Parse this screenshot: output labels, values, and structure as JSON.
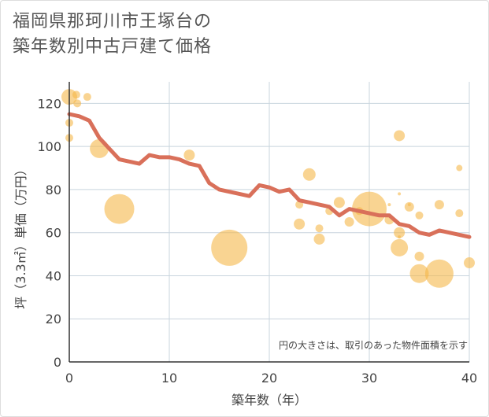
{
  "title_lines": [
    "福岡県那珂川市王塚台の",
    "築年数別中古戸建て価格"
  ],
  "colors": {
    "bubble": "#f5b84a",
    "line": "#d9705a",
    "grid": "#c8d4de",
    "axis": "#333333"
  },
  "chart_data": {
    "type": "scatter",
    "title": "福岡県那珂川市王塚台の築年数別中古戸建て価格",
    "xlabel": "築年数（年）",
    "ylabel": "坪（3.3㎡）単価（万円）",
    "xlim": [
      0,
      40
    ],
    "ylim": [
      0,
      130
    ],
    "xticks": [
      0,
      10,
      20,
      30,
      40
    ],
    "yticks": [
      0,
      20,
      40,
      60,
      80,
      100,
      120
    ],
    "grid": true,
    "note": "円の大きさは、取引のあった物件面積を示す",
    "series": [
      {
        "kind": "bubble",
        "points": [
          {
            "x": 0,
            "y": 123,
            "size": 10
          },
          {
            "x": 0.7,
            "y": 124,
            "size": 5
          },
          {
            "x": 0.8,
            "y": 120,
            "size": 5
          },
          {
            "x": 1.8,
            "y": 123,
            "size": 5
          },
          {
            "x": 0,
            "y": 111,
            "size": 5
          },
          {
            "x": 0,
            "y": 104,
            "size": 5
          },
          {
            "x": 3,
            "y": 99,
            "size": 12
          },
          {
            "x": 5,
            "y": 71,
            "size": 19
          },
          {
            "x": 12,
            "y": 96,
            "size": 7
          },
          {
            "x": 16,
            "y": 53,
            "size": 23
          },
          {
            "x": 23,
            "y": 73,
            "size": 5
          },
          {
            "x": 23,
            "y": 64,
            "size": 7
          },
          {
            "x": 24,
            "y": 87,
            "size": 8
          },
          {
            "x": 25,
            "y": 62,
            "size": 5
          },
          {
            "x": 25,
            "y": 57,
            "size": 7
          },
          {
            "x": 26,
            "y": 70,
            "size": 5
          },
          {
            "x": 27,
            "y": 74,
            "size": 7
          },
          {
            "x": 28,
            "y": 65,
            "size": 6
          },
          {
            "x": 29,
            "y": 70,
            "size": 5
          },
          {
            "x": 30,
            "y": 71,
            "size": 22
          },
          {
            "x": 32,
            "y": 73,
            "size": 2
          },
          {
            "x": 32,
            "y": 66,
            "size": 6
          },
          {
            "x": 33,
            "y": 105,
            "size": 7
          },
          {
            "x": 33,
            "y": 78,
            "size": 2
          },
          {
            "x": 33,
            "y": 60,
            "size": 7
          },
          {
            "x": 33,
            "y": 53,
            "size": 11
          },
          {
            "x": 33,
            "y": 58,
            "size": 2
          },
          {
            "x": 34,
            "y": 73,
            "size": 2
          },
          {
            "x": 34,
            "y": 72,
            "size": 6
          },
          {
            "x": 35,
            "y": 68,
            "size": 5
          },
          {
            "x": 35,
            "y": 49,
            "size": 6
          },
          {
            "x": 35,
            "y": 41,
            "size": 12
          },
          {
            "x": 37,
            "y": 41,
            "size": 18
          },
          {
            "x": 37,
            "y": 73,
            "size": 6
          },
          {
            "x": 39,
            "y": 90,
            "size": 4
          },
          {
            "x": 39,
            "y": 69,
            "size": 5
          },
          {
            "x": 40,
            "y": 46,
            "size": 7
          }
        ]
      },
      {
        "kind": "line",
        "x": [
          0,
          1,
          2,
          3,
          4,
          5,
          6,
          7,
          8,
          9,
          10,
          11,
          12,
          13,
          14,
          15,
          16,
          17,
          18,
          19,
          20,
          21,
          22,
          23,
          24,
          25,
          26,
          27,
          28,
          29,
          30,
          31,
          32,
          33,
          34,
          35,
          36,
          37,
          38,
          39,
          40
        ],
        "y": [
          115,
          114,
          112,
          104,
          99,
          94,
          93,
          92,
          96,
          95,
          95,
          94,
          92,
          91,
          83,
          80,
          79,
          78,
          77,
          82,
          81,
          79,
          80,
          75,
          74,
          73,
          72,
          68,
          71,
          70,
          69,
          68,
          68,
          64,
          63,
          60,
          59,
          61,
          60,
          59,
          58
        ]
      }
    ]
  }
}
